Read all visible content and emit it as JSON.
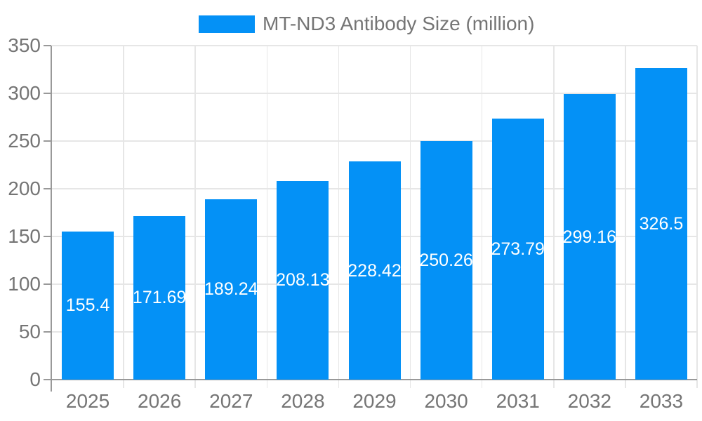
{
  "legend": {
    "label": "MT-ND3 Antibody Size (million)"
  },
  "colors": {
    "bar": "#0491F6",
    "axis": "#999999",
    "grid": "#e6e6e6",
    "text": "#757575",
    "value_label": "#ffffff",
    "background": "#ffffff"
  },
  "chart_data": {
    "type": "bar",
    "title": "MT-ND3 Antibody Size (million)",
    "series_name": "MT-ND3 Antibody Size (million)",
    "categories": [
      "2025",
      "2026",
      "2027",
      "2028",
      "2029",
      "2030",
      "2031",
      "2032",
      "2033"
    ],
    "values": [
      155.4,
      171.69,
      189.24,
      208.13,
      228.42,
      250.26,
      273.79,
      299.16,
      326.5
    ],
    "value_labels": [
      "155.4",
      "171.69",
      "189.24",
      "208.13",
      "228.42",
      "250.26",
      "273.79",
      "299.16",
      "326.5"
    ],
    "xlabel": "",
    "ylabel": "",
    "ylim": [
      0,
      350
    ],
    "yticks": [
      0,
      50,
      100,
      150,
      200,
      250,
      300,
      350
    ],
    "ytick_labels": [
      "0",
      "50",
      "100",
      "150",
      "200",
      "250",
      "300",
      "350"
    ],
    "grid": true,
    "legend_position": "top-center",
    "value_label_position": "inside-center",
    "bar_color": "#0491F6"
  }
}
